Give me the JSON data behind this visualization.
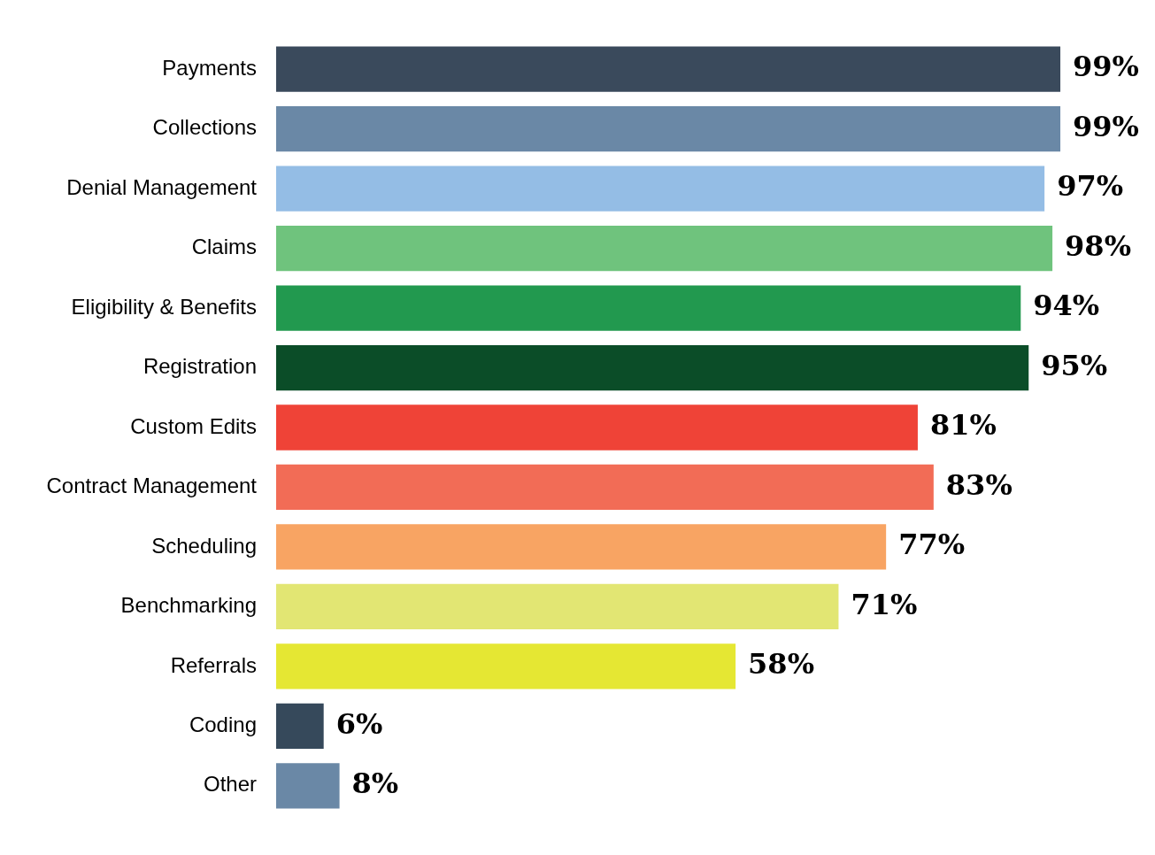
{
  "chart_data": {
    "type": "bar",
    "orientation": "horizontal",
    "categories": [
      "Payments",
      "Collections",
      "Denial Management",
      "Claims",
      "Eligibility & Benefits",
      "Registration",
      "Custom Edits",
      "Contract Management",
      "Scheduling",
      "Benchmarking",
      "Referrals",
      "Coding",
      "Other"
    ],
    "values": [
      99,
      99,
      97,
      98,
      94,
      95,
      81,
      83,
      77,
      71,
      58,
      6,
      8
    ],
    "value_labels": [
      "99%",
      "99%",
      "97%",
      "98%",
      "94%",
      "95%",
      "81%",
      "83%",
      "77%",
      "71%",
      "58%",
      "6%",
      "8%"
    ],
    "colors": [
      "#3a4a5c",
      "#6a88a6",
      "#94bde5",
      "#6fc37d",
      "#22994f",
      "#0b4d28",
      "#ef4337",
      "#f26c56",
      "#f8a463",
      "#e2e673",
      "#e5e733",
      "#36495b",
      "#6a88a6"
    ],
    "tick_labels": "y",
    "grid": false,
    "legend": false
  }
}
